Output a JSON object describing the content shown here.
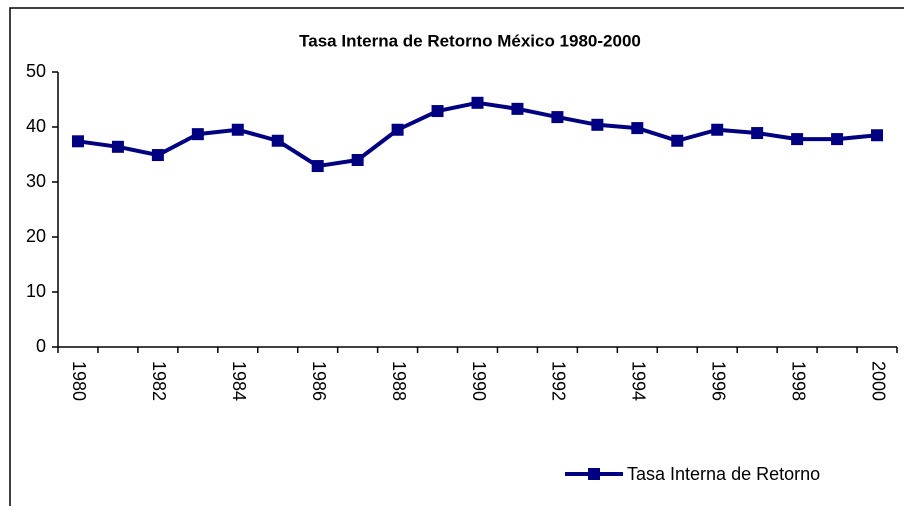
{
  "chart_data": {
    "type": "line",
    "title": "Tasa Interna de Retorno México 1980-2000",
    "categories": [
      "1980",
      null,
      "1982",
      null,
      "1984",
      null,
      "1986",
      null,
      "1988",
      null,
      "1990",
      null,
      "1992",
      null,
      "1994",
      null,
      "1996",
      null,
      "1998",
      null,
      "2000"
    ],
    "series": [
      {
        "name": "Tasa Interna de Retorno",
        "color": "#000080",
        "values": [
          37.4,
          36.4,
          34.9,
          38.7,
          39.5,
          37.5,
          32.9,
          34.0,
          39.5,
          42.9,
          44.4,
          43.3,
          41.8,
          40.4,
          39.8,
          37.5,
          39.5,
          38.9,
          37.8,
          37.8,
          38.5
        ]
      }
    ],
    "ylim": [
      0,
      50
    ],
    "yticks": [
      0,
      10,
      20,
      30,
      40,
      50
    ],
    "grid": false,
    "legend": "bottom-right"
  }
}
